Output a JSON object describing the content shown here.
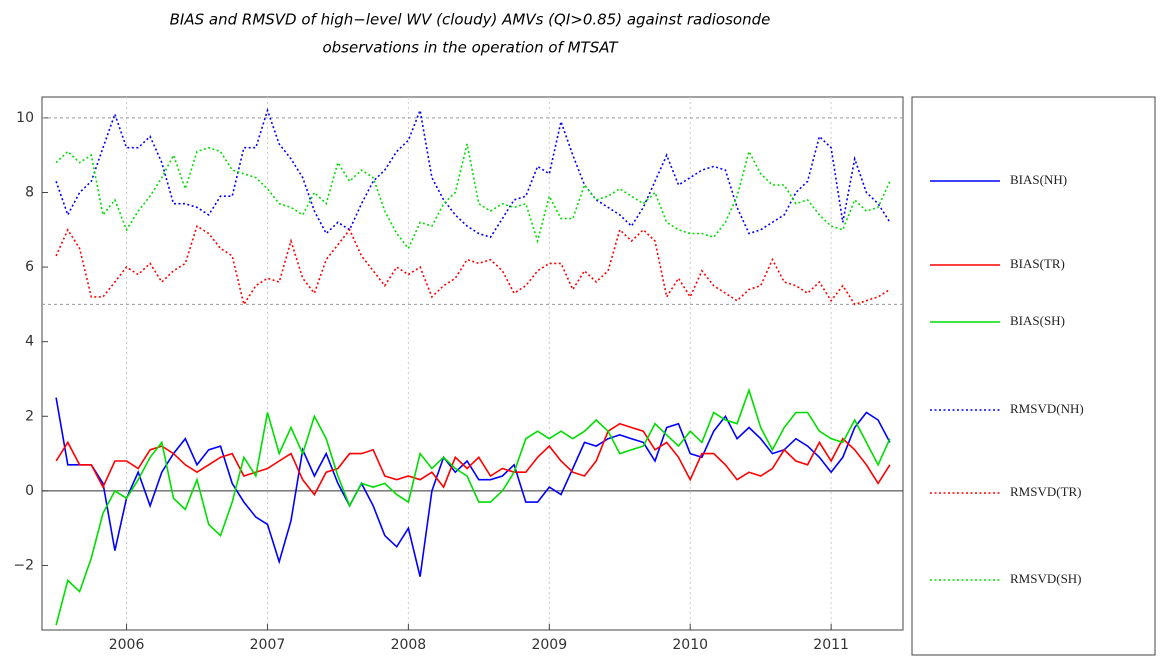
{
  "chart_data": {
    "type": "line",
    "title": "BIAS and RMSVD of high−level WV (cloudy) AMVs (QI>0.85) against radiosonde",
    "subtitle": "observations in the operation of MTSAT",
    "x": [
      2005.5,
      2005.583,
      2005.667,
      2005.75,
      2005.833,
      2005.917,
      2006,
      2006.083,
      2006.167,
      2006.25,
      2006.333,
      2006.417,
      2006.5,
      2006.583,
      2006.667,
      2006.75,
      2006.833,
      2006.917,
      2007,
      2007.083,
      2007.167,
      2007.25,
      2007.333,
      2007.417,
      2007.5,
      2007.583,
      2007.667,
      2007.75,
      2007.833,
      2007.917,
      2008,
      2008.083,
      2008.167,
      2008.25,
      2008.333,
      2008.417,
      2008.5,
      2008.583,
      2008.667,
      2008.75,
      2008.833,
      2008.917,
      2009,
      2009.083,
      2009.167,
      2009.25,
      2009.333,
      2009.417,
      2009.5,
      2009.583,
      2009.667,
      2009.75,
      2009.833,
      2009.917,
      2010,
      2010.083,
      2010.167,
      2010.25,
      2010.333,
      2010.417,
      2010.5,
      2010.583,
      2010.667,
      2010.75,
      2010.833,
      2010.917,
      2011,
      2011.083,
      2011.167,
      2011.25,
      2011.333,
      2011.417
    ],
    "xlim": [
      2005.4,
      2011.51
    ],
    "xticks": [
      2006,
      2007,
      2008,
      2009,
      2010,
      2011
    ],
    "ylim": [
      -3.73,
      10.56
    ],
    "yticks": [
      {
        "value": -2,
        "label": "−2"
      },
      0,
      2,
      4,
      6,
      8,
      10
    ],
    "grid_y": [
      5,
      10
    ],
    "grid_x": true,
    "series": [
      {
        "name": "BIAS(NH)",
        "color": "#0000ff",
        "style": "solid",
        "values": [
          2.5,
          0.7,
          0.7,
          0.7,
          0.2,
          -1.6,
          -0.2,
          0.5,
          -0.4,
          0.5,
          1.0,
          1.4,
          0.7,
          1.1,
          1.2,
          0.2,
          -0.3,
          -0.7,
          -0.9,
          -1.9,
          -0.8,
          1.1,
          0.4,
          1.0,
          0.2,
          -0.4,
          0.2,
          -0.4,
          -1.2,
          -1.5,
          -1.0,
          -2.3,
          0.0,
          0.9,
          0.5,
          0.8,
          0.3,
          0.3,
          0.4,
          0.7,
          -0.3,
          -0.3,
          0.1,
          -0.1,
          0.6,
          1.3,
          1.2,
          1.4,
          1.5,
          1.4,
          1.3,
          0.8,
          1.7,
          1.8,
          1.0,
          0.9,
          1.6,
          2.0,
          1.4,
          1.7,
          1.4,
          1.0,
          1.1,
          1.4,
          1.2,
          0.9,
          0.5,
          0.9,
          1.7,
          2.1,
          1.9,
          1.3
        ]
      },
      {
        "name": "BIAS(TR)",
        "color": "#ff0000",
        "style": "solid",
        "values": [
          0.8,
          1.3,
          0.7,
          0.7,
          0.1,
          0.8,
          0.8,
          0.6,
          1.1,
          1.2,
          1.0,
          0.7,
          0.5,
          0.7,
          0.9,
          1.0,
          0.4,
          0.5,
          0.6,
          0.8,
          1.0,
          0.3,
          -0.1,
          0.5,
          0.6,
          1.0,
          1.0,
          1.1,
          0.4,
          0.3,
          0.4,
          0.3,
          0.5,
          0.1,
          0.9,
          0.6,
          0.9,
          0.4,
          0.6,
          0.5,
          0.5,
          0.9,
          1.2,
          0.8,
          0.5,
          0.4,
          0.8,
          1.6,
          1.8,
          1.7,
          1.6,
          1.1,
          1.3,
          0.9,
          0.3,
          1.0,
          1.0,
          0.7,
          0.3,
          0.5,
          0.4,
          0.6,
          1.1,
          0.8,
          0.7,
          1.3,
          0.8,
          1.4,
          1.1,
          0.7,
          0.2,
          0.7
        ]
      },
      {
        "name": "BIAS(SH)",
        "color": "#00dd00",
        "style": "solid",
        "values": [
          -3.6,
          -2.4,
          -2.7,
          -1.8,
          -0.6,
          0.0,
          -0.2,
          0.3,
          0.9,
          1.3,
          -0.2,
          -0.5,
          0.3,
          -0.9,
          -1.2,
          -0.3,
          0.9,
          0.4,
          2.1,
          1.0,
          1.7,
          1.0,
          2.0,
          1.4,
          0.4,
          -0.4,
          0.2,
          0.1,
          0.2,
          -0.1,
          -0.3,
          1.0,
          0.6,
          0.9,
          0.6,
          0.4,
          -0.3,
          -0.3,
          0.0,
          0.5,
          1.4,
          1.6,
          1.4,
          1.6,
          1.4,
          1.6,
          1.9,
          1.6,
          1.0,
          1.1,
          1.2,
          1.8,
          1.5,
          1.2,
          1.6,
          1.3,
          2.1,
          1.9,
          1.8,
          2.7,
          1.7,
          1.1,
          1.7,
          2.1,
          2.1,
          1.6,
          1.4,
          1.3,
          1.9,
          1.3,
          0.7,
          1.4
        ]
      },
      {
        "name": "RMSVD(NH)",
        "color": "#0000ff",
        "style": "dotted",
        "values": [
          8.3,
          7.4,
          8.0,
          8.3,
          9.2,
          10.1,
          9.2,
          9.2,
          9.5,
          8.8,
          7.7,
          7.7,
          7.6,
          7.4,
          7.9,
          7.9,
          9.2,
          9.2,
          10.2,
          9.3,
          8.9,
          8.4,
          7.5,
          6.9,
          7.2,
          7.0,
          7.7,
          8.3,
          8.6,
          9.1,
          9.4,
          10.2,
          8.4,
          7.8,
          7.4,
          7.1,
          6.9,
          6.8,
          7.3,
          7.8,
          7.9,
          8.7,
          8.5,
          9.9,
          9.0,
          8.2,
          7.8,
          7.6,
          7.4,
          7.1,
          7.6,
          8.3,
          9.0,
          8.2,
          8.4,
          8.6,
          8.7,
          8.6,
          7.6,
          6.9,
          7.0,
          7.2,
          7.4,
          8.0,
          8.3,
          9.5,
          9.2,
          7.2,
          8.9,
          8.0,
          7.7,
          7.2
        ]
      },
      {
        "name": "RMSVD(TR)",
        "color": "#ff0000",
        "style": "dotted",
        "values": [
          6.3,
          7.0,
          6.5,
          5.2,
          5.2,
          5.6,
          6.0,
          5.8,
          6.1,
          5.6,
          5.9,
          6.1,
          7.1,
          6.9,
          6.5,
          6.3,
          5.0,
          5.5,
          5.7,
          5.6,
          6.7,
          5.7,
          5.3,
          6.2,
          6.6,
          7.0,
          6.3,
          5.9,
          5.5,
          6.0,
          5.8,
          6.0,
          5.2,
          5.5,
          5.7,
          6.2,
          6.1,
          6.2,
          5.9,
          5.3,
          5.5,
          5.9,
          6.1,
          6.1,
          5.4,
          5.9,
          5.6,
          5.9,
          7.0,
          6.7,
          7.0,
          6.7,
          5.2,
          5.7,
          5.2,
          5.9,
          5.5,
          5.3,
          5.1,
          5.4,
          5.5,
          6.2,
          5.6,
          5.5,
          5.3,
          5.6,
          5.1,
          5.5,
          5.0,
          5.1,
          5.2,
          5.4
        ]
      },
      {
        "name": "RMSVD(SH)",
        "color": "#00dd00",
        "style": "dotted",
        "values": [
          8.8,
          9.1,
          8.8,
          9.0,
          7.4,
          7.8,
          7.0,
          7.5,
          7.9,
          8.4,
          9.0,
          8.1,
          9.1,
          9.2,
          9.1,
          8.6,
          8.5,
          8.4,
          8.1,
          7.7,
          7.6,
          7.4,
          8.0,
          7.7,
          8.8,
          8.3,
          8.6,
          8.4,
          7.5,
          6.9,
          6.5,
          7.2,
          7.1,
          7.7,
          8.0,
          9.3,
          7.7,
          7.5,
          7.7,
          7.6,
          7.7,
          6.7,
          7.9,
          7.3,
          7.3,
          8.2,
          7.8,
          7.9,
          8.1,
          7.9,
          7.7,
          8.0,
          7.2,
          7.0,
          6.9,
          6.9,
          6.8,
          7.2,
          7.9,
          9.1,
          8.5,
          8.2,
          8.2,
          7.7,
          7.8,
          7.4,
          7.1,
          7.0,
          7.8,
          7.5,
          7.6,
          8.3
        ]
      }
    ]
  }
}
